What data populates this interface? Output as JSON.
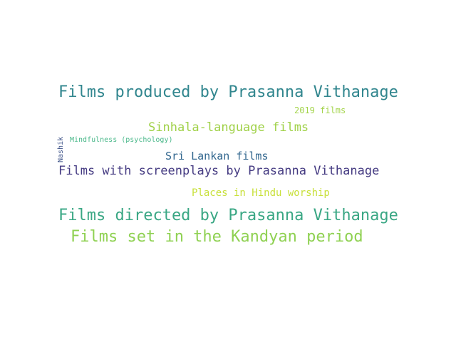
{
  "words": [
    {
      "text": "Films produced by Prasanna Vithanage",
      "color": "#31868e"
    },
    {
      "text": "2019 films",
      "color": "#a3d44a"
    },
    {
      "text": "Sinhala-language films",
      "color": "#a0d148"
    },
    {
      "text": "Mindfulness (psychology)",
      "color": "#4ab88a"
    },
    {
      "text": "Sri Lankan films",
      "color": "#31668e"
    },
    {
      "text": "Films with screenplays by Prasanna Vithanage",
      "color": "#453b82"
    },
    {
      "text": "Places in Hindu worship",
      "color": "#c8e03a"
    },
    {
      "text": "Films directed by Prasanna Vithanage",
      "color": "#3aa784"
    },
    {
      "text": "Films set in the Kandyan period",
      "color": "#8fd152"
    },
    {
      "text": "Nashik",
      "color": "#3d5288"
    }
  ]
}
